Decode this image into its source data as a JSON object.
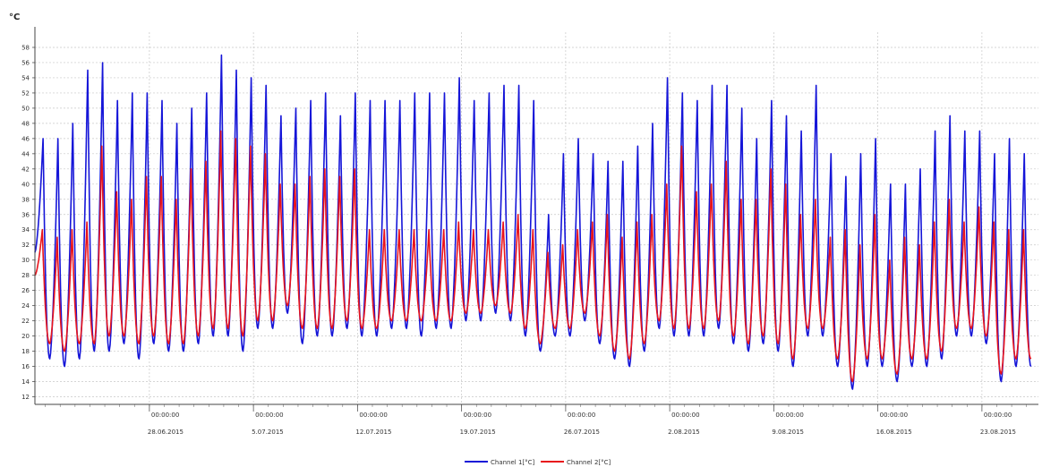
{
  "chart_data": {
    "type": "line",
    "title": "",
    "xlabel": "",
    "ylabel": "°C",
    "ylim": [
      11,
      60
    ],
    "y_ticks": [
      12,
      14,
      16,
      18,
      20,
      22,
      24,
      26,
      28,
      30,
      32,
      34,
      36,
      38,
      40,
      42,
      44,
      46,
      48,
      50,
      52,
      54,
      56,
      58
    ],
    "x_range_days": [
      0,
      67.5
    ],
    "x_major_ticks": [
      {
        "time": "00:00:00",
        "date": "28.06.2015",
        "day": 7.7
      },
      {
        "time": "00:00:00",
        "date": "5.07.2015",
        "day": 14.7
      },
      {
        "time": "00:00:00",
        "date": "12.07.2015",
        "day": 21.7
      },
      {
        "time": "00:00:00",
        "date": "19.07.2015",
        "day": 28.7
      },
      {
        "time": "00:00:00",
        "date": "26.07.2015",
        "day": 35.7
      },
      {
        "time": "00:00:00",
        "date": "2.08.2015",
        "day": 42.7
      },
      {
        "time": "00:00:00",
        "date": "9.08.2015",
        "day": 49.7
      },
      {
        "time": "00:00:00",
        "date": "16.08.2015",
        "day": 56.7
      },
      {
        "time": "00:00:00",
        "date": "23.08.2015",
        "day": 63.7
      }
    ],
    "grid": true,
    "legend": "bottom-center",
    "series": [
      {
        "name": "Channel 1[°C]",
        "color": "#1515d8",
        "daily_max": [
          46,
          46,
          48,
          55,
          56,
          51,
          52,
          52,
          51,
          48,
          50,
          52,
          57,
          55,
          54,
          53,
          49,
          50,
          51,
          52,
          49,
          52,
          51,
          51,
          51,
          52,
          52,
          52,
          54,
          51,
          52,
          53,
          53,
          51,
          36,
          44,
          46,
          44,
          43,
          43,
          45,
          48,
          54,
          52,
          51,
          53,
          53,
          50,
          46,
          51,
          49,
          47,
          53,
          44,
          41,
          44,
          46,
          40,
          40,
          42,
          47,
          49,
          47,
          47,
          44,
          46,
          44
        ],
        "daily_min": [
          31,
          17,
          16,
          17,
          18,
          18,
          19,
          17,
          19,
          18,
          18,
          19,
          20,
          20,
          18,
          21,
          21,
          23,
          19,
          20,
          20,
          21,
          20,
          20,
          21,
          21,
          20,
          21,
          21,
          22,
          22,
          23,
          22,
          20,
          18,
          20,
          20,
          22,
          19,
          17,
          16,
          18,
          21,
          20,
          20,
          20,
          21,
          19,
          18,
          19,
          18,
          16,
          20,
          20,
          16,
          13,
          16,
          16,
          14,
          16,
          16,
          17,
          20,
          20,
          19,
          14,
          16
        ],
        "peak_fraction": 0.55
      },
      {
        "name": "Channel 2[°C]",
        "color": "#e8141c",
        "daily_max": [
          34,
          33,
          34,
          35,
          45,
          39,
          38,
          41,
          41,
          38,
          42,
          43,
          47,
          46,
          45,
          44,
          40,
          40,
          41,
          42,
          41,
          42,
          34,
          34,
          34,
          34,
          34,
          34,
          35,
          34,
          34,
          35,
          36,
          34,
          31,
          32,
          34,
          35,
          36,
          33,
          35,
          36,
          40,
          45,
          39,
          40,
          43,
          38,
          38,
          42,
          40,
          36,
          38,
          33,
          34,
          32,
          36,
          30,
          33,
          32,
          35,
          38,
          35,
          37,
          35,
          34,
          34
        ],
        "daily_min": [
          28,
          19,
          18,
          19,
          19,
          20,
          20,
          19,
          20,
          19,
          19,
          20,
          21,
          21,
          20,
          22,
          22,
          24,
          21,
          21,
          21,
          22,
          21,
          21,
          22,
          22,
          22,
          22,
          22,
          23,
          23,
          24,
          23,
          21,
          19,
          21,
          21,
          23,
          20,
          18,
          17,
          19,
          22,
          21,
          21,
          21,
          22,
          20,
          19,
          20,
          19,
          17,
          21,
          21,
          17,
          14,
          17,
          17,
          15,
          17,
          17,
          18,
          21,
          21,
          20,
          15,
          17
        ],
        "peak_fraction": 0.5
      }
    ]
  }
}
